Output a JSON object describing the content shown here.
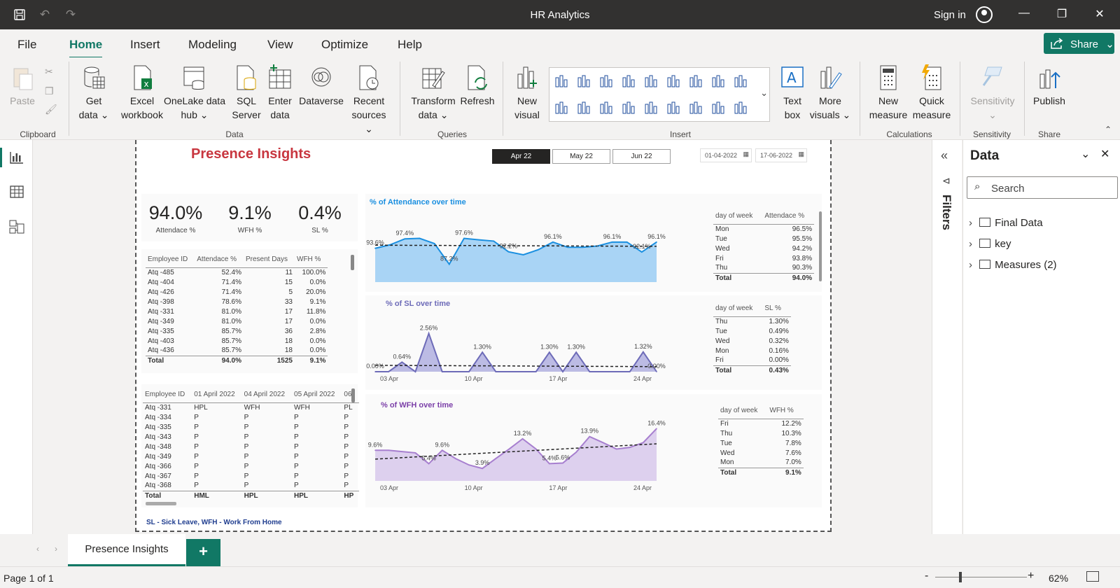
{
  "app": {
    "title": "HR Analytics",
    "sign_in": "Sign in"
  },
  "menu": {
    "file": "File",
    "home": "Home",
    "insert": "Insert",
    "modeling": "Modeling",
    "view": "View",
    "optimize": "Optimize",
    "help": "Help",
    "share": "Share"
  },
  "ribbon": {
    "paste": "Paste",
    "get_data": [
      "Get",
      "data"
    ],
    "excel": [
      "Excel",
      "workbook"
    ],
    "onelake": [
      "OneLake data",
      "hub"
    ],
    "sql": [
      "SQL",
      "Server"
    ],
    "enter": [
      "Enter",
      "data"
    ],
    "dataverse": "Dataverse",
    "recent": [
      "Recent",
      "sources"
    ],
    "transform": [
      "Transform",
      "data"
    ],
    "refresh": "Refresh",
    "new_visual": [
      "New",
      "visual"
    ],
    "text_box": [
      "Text",
      "box"
    ],
    "more_visuals": [
      "More",
      "visuals"
    ],
    "new_measure": [
      "New",
      "measure"
    ],
    "quick_measure": [
      "Quick",
      "measure"
    ],
    "sensitivity": "Sensitivity",
    "publish": "Publish",
    "groups": {
      "clipboard": "Clipboard",
      "data": "Data",
      "queries": "Queries",
      "insert": "Insert",
      "calculations": "Calculations",
      "sensitivity": "Sensitivity",
      "share": "Share"
    }
  },
  "report": {
    "title": "Presence Insights",
    "months": [
      "Apr 22",
      "May 22",
      "Jun 22"
    ],
    "date_from": "01-04-2022",
    "date_to": "17-06-2022",
    "footnote": "SL - Sick Leave, WFH - Work From Home",
    "kpis": [
      {
        "value": "94.0%",
        "label": "Attendace %"
      },
      {
        "value": "9.1%",
        "label": "WFH %"
      },
      {
        "value": "0.4%",
        "label": "SL %"
      }
    ],
    "emp_table": {
      "headers": [
        "Employee ID",
        "Attendace %",
        "Present Days",
        "WFH %"
      ],
      "rows": [
        [
          "Atq -485",
          "52.4%",
          "11",
          "100.0%"
        ],
        [
          "Atq -404",
          "71.4%",
          "15",
          "0.0%"
        ],
        [
          "Atq -426",
          "71.4%",
          "5",
          "20.0%"
        ],
        [
          "Atq -398",
          "78.6%",
          "33",
          "9.1%"
        ],
        [
          "Atq -331",
          "81.0%",
          "17",
          "11.8%"
        ],
        [
          "Atq -349",
          "81.0%",
          "17",
          "0.0%"
        ],
        [
          "Atq -335",
          "85.7%",
          "36",
          "2.8%"
        ],
        [
          "Atq -403",
          "85.7%",
          "18",
          "0.0%"
        ],
        [
          "Atq -436",
          "85.7%",
          "18",
          "0.0%"
        ]
      ],
      "total": [
        "Total",
        "94.0%",
        "1525",
        "9.1%"
      ]
    },
    "matrix": {
      "headers": [
        "Employee ID",
        "01 April 2022",
        "04 April 2022",
        "05 April 2022",
        "06"
      ],
      "rows": [
        [
          "Atq -331",
          "HPL",
          "WFH",
          "WFH",
          "PL"
        ],
        [
          "Atq -334",
          "P",
          "P",
          "P",
          "P"
        ],
        [
          "Atq -335",
          "P",
          "P",
          "P",
          "P"
        ],
        [
          "Atq -343",
          "P",
          "P",
          "P",
          "P"
        ],
        [
          "Atq -348",
          "P",
          "P",
          "P",
          "P"
        ],
        [
          "Atq -349",
          "P",
          "P",
          "P",
          "P"
        ],
        [
          "Atq -366",
          "P",
          "P",
          "P",
          "P"
        ],
        [
          "Atq -367",
          "P",
          "P",
          "P",
          "P"
        ],
        [
          "Atq -368",
          "P",
          "P",
          "P",
          "P"
        ]
      ],
      "total": [
        "Total",
        "HML",
        "HPL",
        "HPL",
        "HP"
      ]
    },
    "att_week": {
      "headers": [
        "day of week",
        "Attendace %"
      ],
      "rows": [
        [
          "Mon",
          "96.5%"
        ],
        [
          "Tue",
          "95.5%"
        ],
        [
          "Wed",
          "94.2%"
        ],
        [
          "Fri",
          "93.8%"
        ],
        [
          "Thu",
          "90.3%"
        ]
      ],
      "total": [
        "Total",
        "94.0%"
      ]
    },
    "sl_week": {
      "headers": [
        "day of week",
        "SL %"
      ],
      "rows": [
        [
          "Thu",
          "1.30%"
        ],
        [
          "Tue",
          "0.49%"
        ],
        [
          "Wed",
          "0.32%"
        ],
        [
          "Mon",
          "0.16%"
        ],
        [
          "Fri",
          "0.00%"
        ]
      ],
      "total": [
        "Total",
        "0.43%"
      ]
    },
    "wfh_week": {
      "headers": [
        "day of week",
        "WFH %"
      ],
      "rows": [
        [
          "Fri",
          "12.2%"
        ],
        [
          "Thu",
          "10.3%"
        ],
        [
          "Tue",
          "7.8%"
        ],
        [
          "Wed",
          "7.6%"
        ],
        [
          "Mon",
          "7.0%"
        ]
      ],
      "total": [
        "Total",
        "9.1%"
      ]
    }
  },
  "chart_data": [
    {
      "type": "area",
      "title": "% of Attendance over time",
      "color": "#1a8fe0",
      "fill": "#a9d4f5",
      "values": [
        93.6,
        95.0,
        97.4,
        97.6,
        95.5,
        87.2,
        97.6,
        97.0,
        96.5,
        92.2,
        91.0,
        93.0,
        96.1,
        94.0,
        94.0,
        94.5,
        96.1,
        96.1,
        92.1,
        96.1
      ],
      "labels": {
        "0": "93.6%",
        "2": "97.4%",
        "5": "87.2%",
        "6": "97.6%",
        "9": "92.2%",
        "12": "96.1%",
        "16": "96.1%",
        "18": "92.1%",
        "19": "96.1%"
      },
      "ylim": [
        80,
        100
      ],
      "xticks": []
    },
    {
      "type": "area",
      "title": "% of SL over time",
      "color": "#6d6bb8",
      "fill": "#bcbbe4",
      "values": [
        0.0,
        0.0,
        0.64,
        0.0,
        2.56,
        0.0,
        0.0,
        0.0,
        1.3,
        0.0,
        0.0,
        0.0,
        0.0,
        1.3,
        0.0,
        1.3,
        0.0,
        0.0,
        0.0,
        0.0,
        1.32,
        0.0
      ],
      "labels": {
        "0": "0.00%",
        "2": "0.64%",
        "4": "2.56%",
        "8": "1.30%",
        "13": "1.30%",
        "15": "1.30%",
        "20": "1.32%",
        "21": "0.00%"
      },
      "ylim": [
        0,
        3
      ],
      "xticks": [
        "03 Apr",
        "10 Apr",
        "17 Apr",
        "24 Apr"
      ]
    },
    {
      "type": "area",
      "title": "% of WFH over time",
      "color": "#a77fcf",
      "fill": "#ddd0ee",
      "values": [
        9.6,
        9.6,
        9.2,
        8.8,
        5.4,
        9.6,
        7.0,
        5.0,
        3.9,
        7.0,
        10.0,
        13.2,
        10.0,
        5.4,
        5.6,
        9.0,
        13.9,
        12.0,
        10.0,
        10.5,
        12.0,
        16.4
      ],
      "labels": {
        "0": "9.6%",
        "4": "5.4%",
        "5": "9.6%",
        "8": "3.9%",
        "11": "13.2%",
        "13": "5.4%",
        "14": "5.6%",
        "16": "13.9%",
        "21": "16.4%"
      },
      "ylim": [
        0,
        18
      ],
      "xticks": [
        "03 Apr",
        "10 Apr",
        "17 Apr",
        "24 Apr"
      ]
    }
  ],
  "filters": {
    "label": "Filters"
  },
  "data_pane": {
    "title": "Data",
    "search_placeholder": "Search",
    "items": [
      "Final Data",
      "key",
      "Measures (2)"
    ]
  },
  "tabs": {
    "page": "Presence Insights",
    "add": "+"
  },
  "status": {
    "page": "Page 1 of 1",
    "zoom": "62%",
    "minus": "-",
    "plus": "+"
  }
}
